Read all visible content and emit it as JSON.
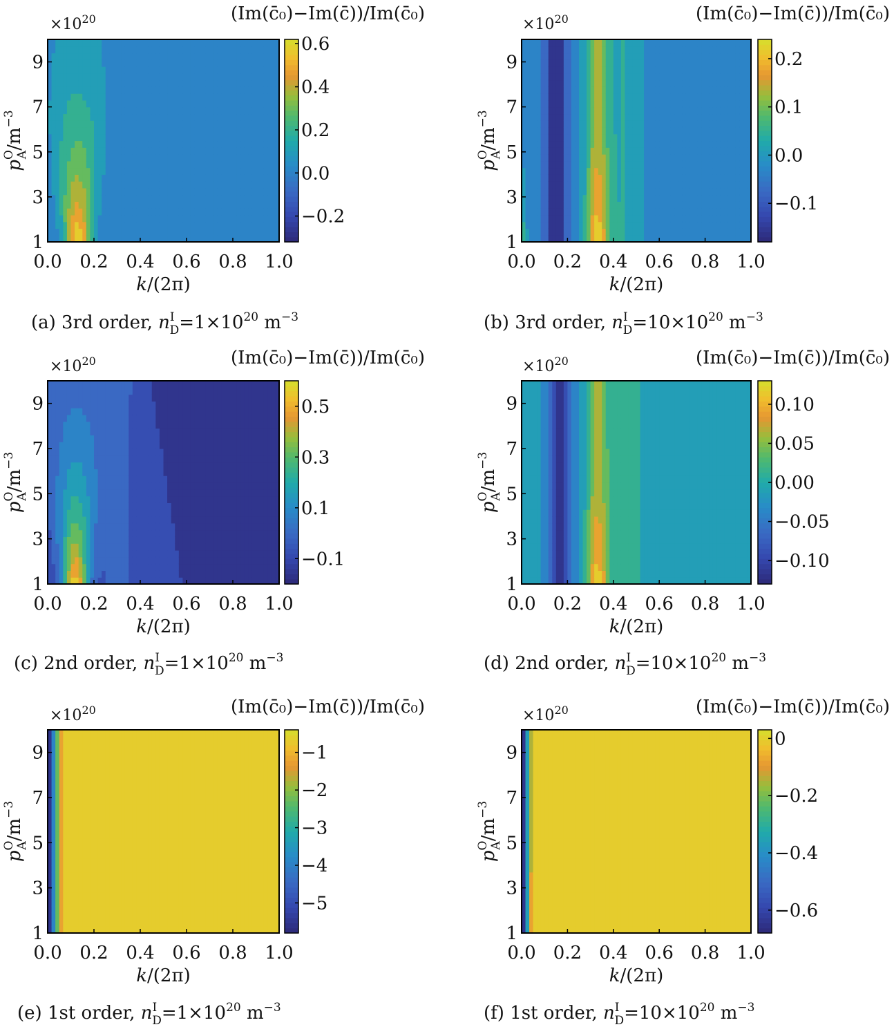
{
  "panels": [
    {
      "id": "a",
      "caption": "(a) 3rd order, n_D^I=1×10^20 m^-3",
      "caption_parts": {
        "prefix": "(a) 3rd order, ",
        "n": "n",
        "sub": "D",
        "sup": "I",
        "eq": "=",
        "value": "1×10",
        "exp": "20",
        "unit": " m",
        "unit_exp": "−3"
      },
      "colorbar_title": "(Im(c̄₀)−Im(c̄))/Im(c̄₀)",
      "y_multiplier": "×10",
      "y_multiplier_exp": "20",
      "xlabel": "k/(2π)",
      "ylabel_main": "p",
      "ylabel_sub": "A",
      "ylabel_sup": "O",
      "ylabel_unit": "/m",
      "ylabel_unit_exp": "−3",
      "xticks": [
        "0.0",
        "0.2",
        "0.4",
        "0.6",
        "0.8",
        "1.0"
      ],
      "yticks": [
        "1",
        "3",
        "5",
        "7",
        "9"
      ],
      "cbar_ticks": [
        "0.6",
        "0.4",
        "0.2",
        "0.0",
        "−0.2"
      ]
    },
    {
      "id": "b",
      "caption": "(b) 3rd order, n_D^I=10×10^20 m^-3",
      "caption_parts": {
        "prefix": "(b) 3rd order, ",
        "n": "n",
        "sub": "D",
        "sup": "I",
        "eq": "=",
        "value": "10×10",
        "exp": "20",
        "unit": " m",
        "unit_exp": "−3"
      },
      "colorbar_title": "(Im(c̄₀)−Im(c̄))/Im(c̄₀)",
      "y_multiplier": "×10",
      "y_multiplier_exp": "20",
      "xlabel": "k/(2π)",
      "ylabel_main": "p",
      "ylabel_sub": "A",
      "ylabel_sup": "O",
      "ylabel_unit": "/m",
      "ylabel_unit_exp": "−3",
      "xticks": [
        "0.0",
        "0.2",
        "0.4",
        "0.6",
        "0.8",
        "1.0"
      ],
      "yticks": [
        "1",
        "3",
        "5",
        "7",
        "9"
      ],
      "cbar_ticks": [
        "0.2",
        "0.1",
        "0.0",
        "−0.1"
      ]
    },
    {
      "id": "c",
      "caption": "(c) 2nd order, n_D^I=1×10^20 m^-3",
      "caption_parts": {
        "prefix": "(c) 2nd order, ",
        "n": "n",
        "sub": "D",
        "sup": "I",
        "eq": "=",
        "value": "1×10",
        "exp": "20",
        "unit": " m",
        "unit_exp": "−3"
      },
      "colorbar_title": "(Im(c̄₀)−Im(c̄))/Im(c̄₀)",
      "y_multiplier": "×10",
      "y_multiplier_exp": "20",
      "xlabel": "k/(2π)",
      "ylabel_main": "p",
      "ylabel_sub": "A",
      "ylabel_sup": "O",
      "ylabel_unit": "/m",
      "ylabel_unit_exp": "−3",
      "xticks": [
        "0.0",
        "0.2",
        "0.4",
        "0.6",
        "0.8",
        "1.0"
      ],
      "yticks": [
        "1",
        "3",
        "5",
        "7",
        "9"
      ],
      "cbar_ticks": [
        "0.5",
        "0.3",
        "0.1",
        "−0.1"
      ]
    },
    {
      "id": "d",
      "caption": "(d) 2nd order, n_D^I=10×10^20 m^-3",
      "caption_parts": {
        "prefix": "(d) 2nd order, ",
        "n": "n",
        "sub": "D",
        "sup": "I",
        "eq": "=",
        "value": "10×10",
        "exp": "20",
        "unit": " m",
        "unit_exp": "−3"
      },
      "colorbar_title": "(Im(c̄₀)−Im(c̄))/Im(c̄₀)",
      "y_multiplier": "×10",
      "y_multiplier_exp": "20",
      "xlabel": "k/(2π)",
      "ylabel_main": "p",
      "ylabel_sub": "A",
      "ylabel_sup": "O",
      "ylabel_unit": "/m",
      "ylabel_unit_exp": "−3",
      "xticks": [
        "0.0",
        "0.2",
        "0.4",
        "0.6",
        "0.8",
        "1.0"
      ],
      "yticks": [
        "1",
        "3",
        "5",
        "7",
        "9"
      ],
      "cbar_ticks": [
        "0.10",
        "0.05",
        "0.00",
        "−0.05",
        "−0.10"
      ]
    },
    {
      "id": "e",
      "caption": "(e) 1st order, n_D^I=1×10^20 m^-3",
      "caption_parts": {
        "prefix": "(e) 1st order, ",
        "n": "n",
        "sub": "D",
        "sup": "I",
        "eq": "=",
        "value": "1×10",
        "exp": "20",
        "unit": " m",
        "unit_exp": "−3"
      },
      "colorbar_title": "(Im(c̄₀)−Im(c̄))/Im(c̄₀)",
      "y_multiplier": "×10",
      "y_multiplier_exp": "20",
      "xlabel": "k/(2π)",
      "ylabel_main": "p",
      "ylabel_sub": "A",
      "ylabel_sup": "O",
      "ylabel_unit": "/m",
      "ylabel_unit_exp": "−3",
      "xticks": [
        "0.0",
        "0.2",
        "0.4",
        "0.6",
        "0.8",
        "1.0"
      ],
      "yticks": [
        "1",
        "3",
        "5",
        "7",
        "9"
      ],
      "cbar_ticks": [
        "−1",
        "−2",
        "−3",
        "−4",
        "−5"
      ]
    },
    {
      "id": "f",
      "caption": "(f) 1st order, n_D^I=10×10^20 m^-3",
      "caption_parts": {
        "prefix": "(f) 1st order, ",
        "n": "n",
        "sub": "D",
        "sup": "I",
        "eq": "=",
        "value": "10×10",
        "exp": "20",
        "unit": " m",
        "unit_exp": "−3"
      },
      "colorbar_title": "(Im(c̄₀)−Im(c̄))/Im(c̄₀)",
      "y_multiplier": "×10",
      "y_multiplier_exp": "20",
      "xlabel": "k/(2π)",
      "ylabel_main": "p",
      "ylabel_sub": "A",
      "ylabel_sup": "O",
      "ylabel_unit": "/m",
      "ylabel_unit_exp": "−3",
      "xticks": [
        "0.0",
        "0.2",
        "0.4",
        "0.6",
        "0.8",
        "1.0"
      ],
      "yticks": [
        "1",
        "3",
        "5",
        "7",
        "9"
      ],
      "cbar_ticks": [
        "0",
        "−0.2",
        "−0.4",
        "−0.6"
      ]
    }
  ],
  "chart_data": [
    {
      "panel": "a",
      "type": "heatmap",
      "x_range": [
        0.0,
        1.0
      ],
      "y_range": [
        1,
        10
      ],
      "y_scale_factor": "1e20",
      "color_range": [
        -0.32,
        0.62
      ],
      "colors": {
        "low": "#2d3b8c",
        "mid": "#3b6fc4",
        "high": "#d6d82b"
      },
      "peak": {
        "x": 0.13,
        "y": 1.2,
        "value": 0.6
      },
      "background_value": -0.02,
      "description": "A ridge of positive values near k/(2π)≈0.1, strongest at low p and decaying toward p≈10; elsewhere ≈0."
    },
    {
      "panel": "b",
      "type": "heatmap",
      "x_range": [
        0.0,
        1.0
      ],
      "y_range": [
        1,
        10
      ],
      "y_scale_factor": "1e20",
      "color_range": [
        -0.18,
        0.24
      ],
      "trough": {
        "x": 0.15,
        "value": -0.17
      },
      "peak": {
        "x": 0.33,
        "y": 2.0,
        "value": 0.23
      },
      "background_value": -0.03,
      "description": "Negative band near k/(2π)≈0.15 and positive band near k/(2π)≈0.33; elsewhere ≈−0.03."
    },
    {
      "panel": "c",
      "type": "heatmap",
      "x_range": [
        0.0,
        1.0
      ],
      "y_range": [
        1,
        10
      ],
      "y_scale_factor": "1e20",
      "color_range": [
        -0.2,
        0.6
      ],
      "peak": {
        "x": 0.12,
        "y": 1.2,
        "value": 0.57
      },
      "background_value": -0.15,
      "description": "Ridge of positive values near k/(2π)≈0.1 strongest at low p; large region ≈−0.15 on the right."
    },
    {
      "panel": "d",
      "type": "heatmap",
      "x_range": [
        0.0,
        1.0
      ],
      "y_range": [
        1,
        10
      ],
      "y_scale_factor": "1e20",
      "color_range": [
        -0.13,
        0.13
      ],
      "trough": {
        "x": 0.17,
        "value": -0.12
      },
      "peak": {
        "x": 0.33,
        "y": 1.5,
        "value": 0.12
      },
      "background_value": -0.02,
      "description": "Negative band near k/(2π)≈0.17 and positive band near k/(2π)≈0.33."
    },
    {
      "panel": "e",
      "type": "heatmap",
      "x_range": [
        0.0,
        1.0
      ],
      "y_range": [
        1,
        10
      ],
      "y_scale_factor": "1e20",
      "color_range": [
        -5.8,
        -0.4
      ],
      "trough": {
        "x": 0.0,
        "value": -5.5
      },
      "background_value": -0.5,
      "description": "Strongly negative strip at k/(2π)<0.1; nearly uniform ≈−0.5 elsewhere."
    },
    {
      "panel": "f",
      "type": "heatmap",
      "x_range": [
        0.0,
        1.0
      ],
      "y_range": [
        1,
        10
      ],
      "y_scale_factor": "1e20",
      "color_range": [
        -0.68,
        0.03
      ],
      "trough": {
        "x": 0.0,
        "value": -0.65
      },
      "background_value": -0.02,
      "description": "Negative strip at very small k, thin orange band near k/(2π)≈0.1, nearly uniform ≈−0.02 elsewhere."
    }
  ]
}
